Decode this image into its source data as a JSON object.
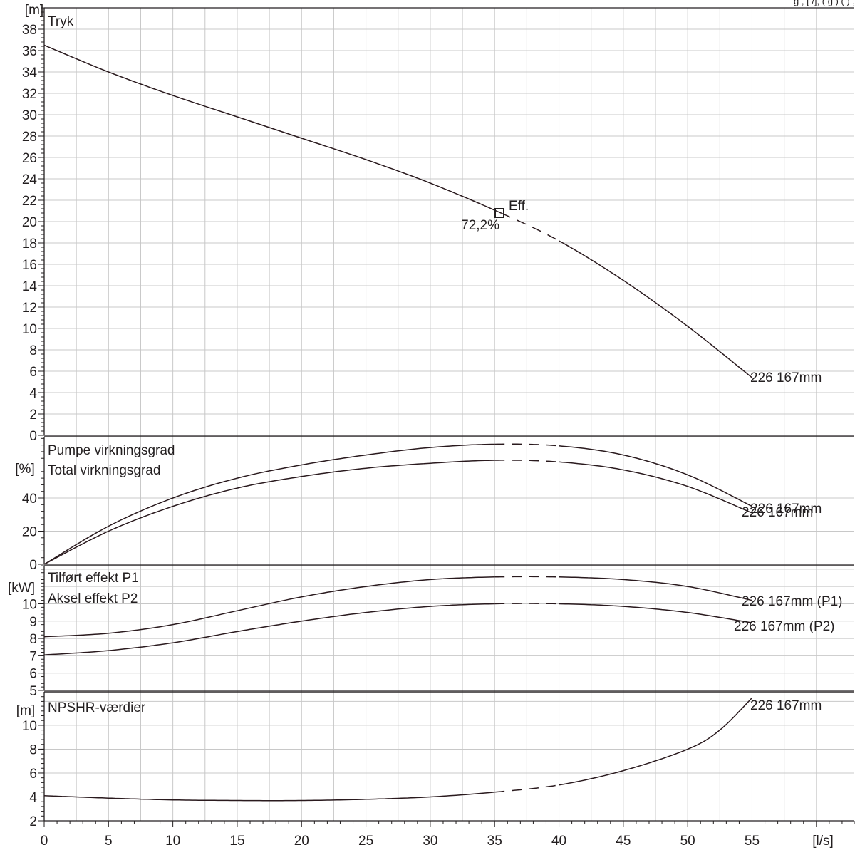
{
  "header_fragment": "g        ,    [ /],   (  g   ) ( )       ,",
  "x_axis": {
    "ticks": [
      0,
      5,
      10,
      15,
      20,
      25,
      30,
      35,
      40,
      45,
      50,
      55
    ],
    "unit": "[l/s]",
    "range": [
      0,
      63
    ]
  },
  "chart_data": [
    {
      "type": "line",
      "title": "Tryk",
      "ylabel": "[m]",
      "ylim": [
        0,
        40
      ],
      "yticks": [
        0,
        2,
        4,
        6,
        8,
        10,
        12,
        14,
        16,
        18,
        20,
        22,
        24,
        26,
        28,
        30,
        32,
        34,
        36,
        38
      ],
      "grid": true,
      "series": [
        {
          "name": "226 167mm",
          "x": [
            0,
            5,
            10,
            15,
            20,
            25,
            30,
            35.5,
            40,
            45,
            50,
            55
          ],
          "y": [
            36.5,
            34.0,
            31.8,
            29.8,
            27.8,
            25.8,
            23.6,
            20.8,
            18.2,
            14.5,
            10.2,
            5.4
          ],
          "dashed_range": [
            35.5,
            40
          ]
        }
      ],
      "annotations": [
        {
          "label": "Eff.",
          "value": "72,2%",
          "x": 35.5,
          "y": 20.9
        }
      ]
    },
    {
      "type": "line",
      "title": "Pumpe virkningsgrad",
      "title2": "Total virkningsgrad",
      "ylabel": "[%]",
      "ylim": [
        0,
        77
      ],
      "yticks": [
        0,
        20,
        40
      ],
      "grid": true,
      "series": [
        {
          "name": "226 167mm",
          "x": [
            0,
            5,
            10,
            15,
            20,
            25,
            30,
            35,
            40,
            45,
            50,
            55
          ],
          "y": [
            0,
            23,
            40,
            52,
            60,
            66,
            70.5,
            72.5,
            71.5,
            66,
            54,
            35
          ],
          "dashed_range": [
            35,
            40
          ]
        },
        {
          "name": "226 167mm",
          "x": [
            0,
            5,
            10,
            15,
            20,
            25,
            30,
            35,
            40,
            45,
            50,
            55
          ],
          "y": [
            0,
            20,
            35,
            46,
            53,
            58,
            61,
            62.8,
            61.8,
            57,
            47,
            31
          ],
          "dashed_range": [
            35,
            40
          ]
        }
      ]
    },
    {
      "type": "line",
      "title": "Tilført effekt P1",
      "title2": "Aksel effekt P2",
      "ylabel": "[kW]",
      "ylim": [
        5,
        12.2
      ],
      "yticks": [
        5,
        6,
        7,
        8,
        9,
        10
      ],
      "grid": true,
      "series": [
        {
          "name": "226 167mm (P1)",
          "x": [
            0,
            5,
            10,
            15,
            20,
            25,
            30,
            35,
            40,
            45,
            50,
            55
          ],
          "y": [
            8.1,
            8.3,
            8.8,
            9.6,
            10.4,
            11.0,
            11.4,
            11.55,
            11.55,
            11.4,
            11.0,
            10.2
          ],
          "dashed_range": [
            35,
            40
          ]
        },
        {
          "name": "226 167mm (P2)",
          "x": [
            0,
            5,
            10,
            15,
            20,
            25,
            30,
            35,
            40,
            45,
            50,
            55
          ],
          "y": [
            7.05,
            7.3,
            7.75,
            8.4,
            9.0,
            9.5,
            9.85,
            10.0,
            10.0,
            9.85,
            9.5,
            8.9
          ],
          "dashed_range": [
            35,
            40
          ]
        }
      ]
    },
    {
      "type": "line",
      "title": "NPSHR-værdier",
      "ylabel": "[m]",
      "ylim": [
        2,
        12.8
      ],
      "yticks": [
        2,
        4,
        6,
        8,
        10
      ],
      "grid": true,
      "series": [
        {
          "name": "226 167mm",
          "x": [
            0,
            5,
            10,
            15,
            20,
            25,
            30,
            35,
            40,
            45,
            50,
            52.5,
            55
          ],
          "y": [
            4.1,
            3.9,
            3.75,
            3.7,
            3.7,
            3.8,
            4.0,
            4.4,
            5.0,
            6.2,
            8.0,
            9.6,
            12.3
          ],
          "dashed_range": [
            35,
            40
          ]
        }
      ]
    }
  ]
}
